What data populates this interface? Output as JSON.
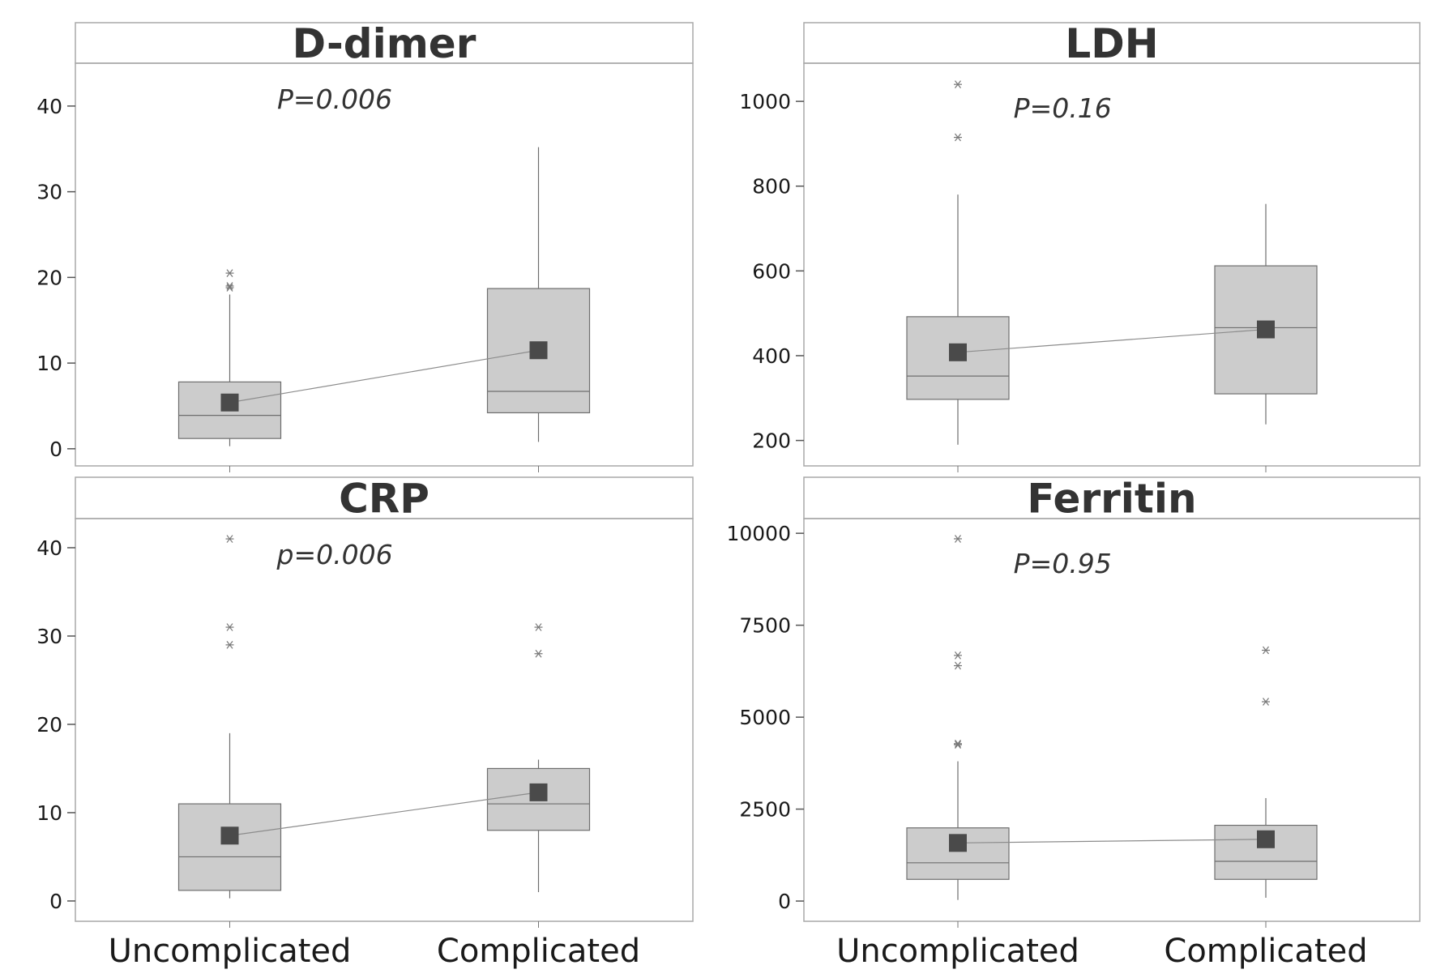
{
  "chart_data": [
    {
      "type": "box",
      "title": "D-dimer",
      "annotation": "P=0.006",
      "categories": [
        "Uncomplicated",
        "Complicated"
      ],
      "ylim": [
        -2,
        45
      ],
      "yticks": [
        0,
        10,
        20,
        30,
        40
      ],
      "boxes": [
        {
          "category": "Uncomplicated",
          "whisker_low": 0.3,
          "q1": 1.2,
          "median": 3.9,
          "q3": 7.8,
          "whisker_high": 18.0,
          "mean": 5.4,
          "outliers": [
            18.8,
            19.0,
            20.5
          ]
        },
        {
          "category": "Complicated",
          "whisker_low": 0.8,
          "q1": 4.2,
          "median": 6.7,
          "q3": 18.7,
          "whisker_high": 35.2,
          "mean": 11.5,
          "outliers": []
        }
      ]
    },
    {
      "type": "box",
      "title": "LDH",
      "annotation": "P=0.16",
      "categories": [
        "Uncomplicated",
        "Complicated"
      ],
      "ylim": [
        140,
        1090
      ],
      "yticks": [
        200,
        400,
        600,
        800,
        1000
      ],
      "boxes": [
        {
          "category": "Uncomplicated",
          "whisker_low": 190,
          "q1": 297,
          "median": 352,
          "q3": 492,
          "whisker_high": 780,
          "mean": 408,
          "outliers": [
            915,
            1040
          ]
        },
        {
          "category": "Complicated",
          "whisker_low": 238,
          "q1": 310,
          "median": 466,
          "q3": 612,
          "whisker_high": 758,
          "mean": 462,
          "outliers": []
        }
      ]
    },
    {
      "type": "box",
      "title": "CRP",
      "annotation": "p=0.006",
      "categories": [
        "Uncomplicated",
        "Complicated"
      ],
      "ylim": [
        -2.3,
        43.3
      ],
      "yticks": [
        0,
        10,
        20,
        30,
        40
      ],
      "boxes": [
        {
          "category": "Uncomplicated",
          "whisker_low": 0.3,
          "q1": 1.2,
          "median": 5.0,
          "q3": 11.0,
          "whisker_high": 19.0,
          "mean": 7.4,
          "outliers": [
            29.0,
            31.0,
            41.0
          ]
        },
        {
          "category": "Complicated",
          "whisker_low": 1.0,
          "q1": 8.0,
          "median": 11.0,
          "q3": 15.0,
          "whisker_high": 16.0,
          "mean": 12.3,
          "outliers": [
            28.0,
            31.0
          ]
        }
      ]
    },
    {
      "type": "box",
      "title": "Ferritin",
      "annotation": "P=0.95",
      "categories": [
        "Uncomplicated",
        "Complicated"
      ],
      "ylim": [
        -550,
        10400
      ],
      "yticks": [
        0,
        2500,
        5000,
        7500,
        10000
      ],
      "boxes": [
        {
          "category": "Uncomplicated",
          "whisker_low": 30,
          "q1": 590,
          "median": 1040,
          "q3": 1990,
          "whisker_high": 3800,
          "mean": 1580,
          "outliers": [
            4250,
            4280,
            6400,
            6680,
            9850
          ]
        },
        {
          "category": "Complicated",
          "whisker_low": 90,
          "q1": 590,
          "median": 1080,
          "q3": 2060,
          "whisker_high": 2800,
          "mean": 1680,
          "outliers": [
            5420,
            6820
          ]
        }
      ]
    }
  ],
  "colors": {
    "box_fill": "#cccccc",
    "box_stroke": "#6e6e6e",
    "mean_marker": "#4a4a4a",
    "mean_line": "#8c8c8c",
    "outlier": "#777777",
    "panel_border": "#a8a8a8",
    "header_fill": "#ffffff",
    "text": "#333333"
  }
}
